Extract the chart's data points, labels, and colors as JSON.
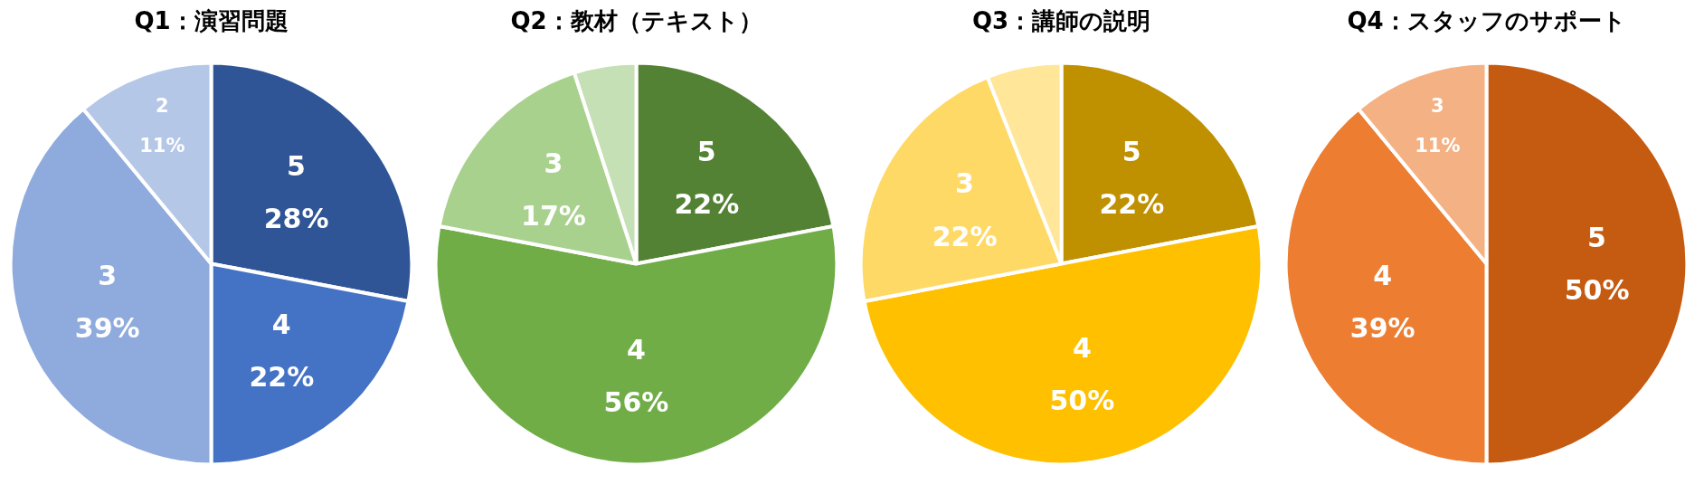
{
  "chart_data": [
    {
      "type": "pie",
      "title": "Q1：演習問題",
      "categories": [
        "5",
        "4",
        "3",
        "2"
      ],
      "values": [
        28,
        22,
        39,
        11
      ],
      "value_labels": [
        "28%",
        "22%",
        "39%",
        "11%"
      ],
      "colors": [
        "#2f5597",
        "#4472c4",
        "#8faadc",
        "#b4c7e7"
      ],
      "legend": false
    },
    {
      "type": "pie",
      "title": "Q2：教材（テキスト）",
      "categories": [
        "5",
        "4",
        "3",
        null
      ],
      "values": [
        22,
        56,
        17,
        5
      ],
      "value_labels": [
        "22%",
        "56%",
        "17%",
        null
      ],
      "colors": [
        "#548235",
        "#70ad47",
        "#a9d18e",
        "#c5e0b4"
      ],
      "legend": false
    },
    {
      "type": "pie",
      "title": "Q3：講師の説明",
      "categories": [
        "5",
        "4",
        "3",
        null
      ],
      "values": [
        22,
        50,
        22,
        6
      ],
      "value_labels": [
        "22%",
        "50%",
        "22%",
        null
      ],
      "colors": [
        "#bf9000",
        "#ffc000",
        "#ffd966",
        "#ffe699"
      ],
      "legend": false
    },
    {
      "type": "pie",
      "title": "Q4：スタッフのサポート",
      "categories": [
        "5",
        "4",
        "3"
      ],
      "values": [
        50,
        39,
        11
      ],
      "value_labels": [
        "50%",
        "39%",
        "11%"
      ],
      "colors": [
        "#c55a11",
        "#ed7d31",
        "#f4b183"
      ],
      "legend": false
    }
  ]
}
